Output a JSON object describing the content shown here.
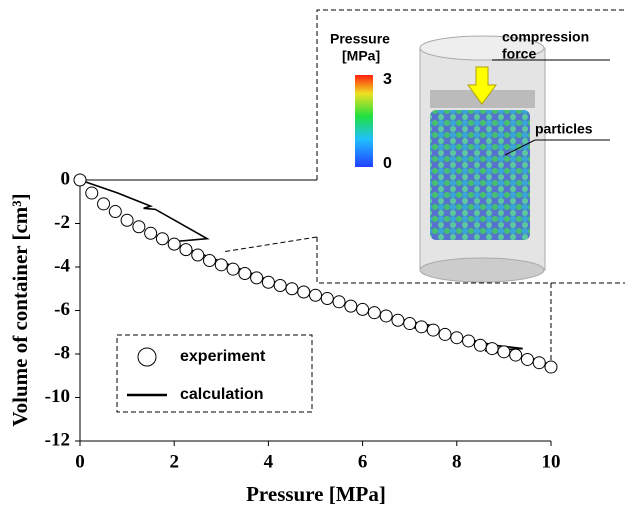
{
  "chart_data": {
    "type": "scatter",
    "x_label": "Pressure [MPa]",
    "y_label": "Volume of container  [cm³]",
    "xlim": [
      0,
      10
    ],
    "xticks": [
      0,
      2,
      4,
      6,
      8,
      10
    ],
    "ylim": [
      -12,
      0
    ],
    "yticks": [
      0,
      -2,
      -4,
      -6,
      -8,
      -10,
      -12
    ],
    "legend": "lower-left",
    "series": [
      {
        "name": "experiment",
        "mode": "markers",
        "color": "#000000",
        "x": [
          0,
          0.25,
          0.5,
          0.75,
          1,
          1.25,
          1.5,
          1.75,
          2,
          2.25,
          2.5,
          2.75,
          3,
          3.25,
          3.5,
          3.75,
          4,
          4.25,
          4.5,
          4.75,
          5,
          5.25,
          5.5,
          5.75,
          6,
          6.25,
          6.5,
          6.75,
          7,
          7.25,
          7.5,
          7.75,
          8,
          8.25,
          8.5,
          8.75,
          9,
          9.25,
          9.5,
          9.75,
          10
        ],
        "values": [
          0,
          -0.6,
          -1.1,
          -1.45,
          -1.85,
          -2.15,
          -2.45,
          -2.7,
          -2.95,
          -3.2,
          -3.45,
          -3.7,
          -3.9,
          -4.1,
          -4.3,
          -4.5,
          -4.7,
          -4.85,
          -5.0,
          -5.15,
          -5.3,
          -5.45,
          -5.6,
          -5.8,
          -5.95,
          -6.1,
          -6.25,
          -6.45,
          -6.6,
          -6.75,
          -6.9,
          -7.1,
          -7.25,
          -7.4,
          -7.6,
          -7.75,
          -7.9,
          -8.05,
          -8.25,
          -8.4,
          -8.6
        ]
      },
      {
        "name": "calculation",
        "mode": "lines",
        "color": "#000000",
        "x": [
          0,
          0.8,
          1.5,
          1.35,
          1.6,
          2.7,
          1.9,
          3,
          4,
          5,
          6,
          7,
          7.6,
          7,
          8,
          8.8,
          9.4,
          8.6,
          9.6,
          10
        ],
        "values": [
          0,
          -0.6,
          -1.2,
          -1.3,
          -1.35,
          -2.7,
          -2.85,
          -3.75,
          -4.6,
          -5.3,
          -5.95,
          -6.5,
          -6.75,
          -6.75,
          -7.2,
          -7.6,
          -7.75,
          -7.85,
          -8.2,
          -8.5
        ]
      }
    ]
  },
  "inset": {
    "colorbar_title": [
      "Pressure",
      "[MPa]"
    ],
    "colorbar_max": "3",
    "colorbar_min": "0",
    "labels": [
      [
        "compression",
        "force"
      ],
      [
        "particles"
      ]
    ]
  }
}
